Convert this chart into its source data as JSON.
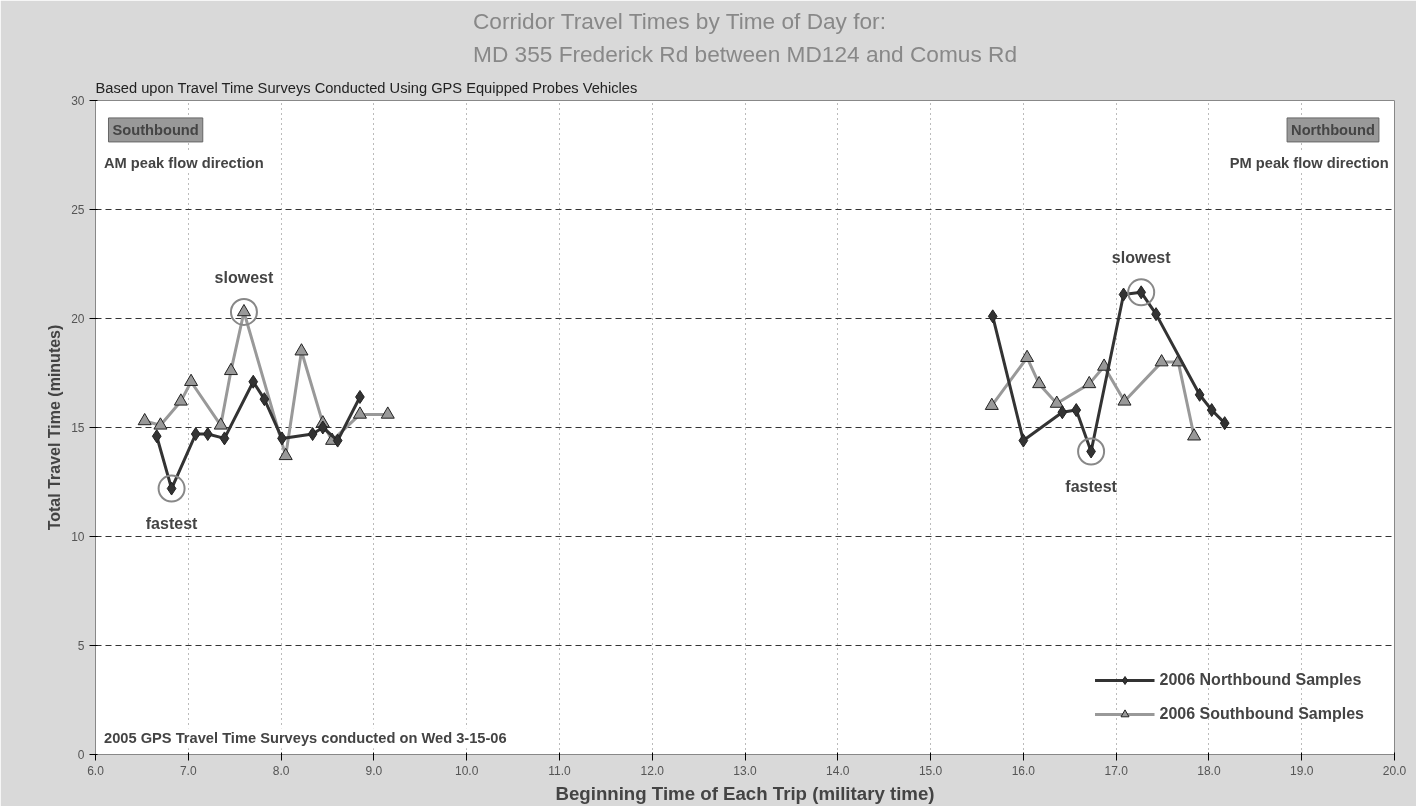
{
  "chart_data": {
    "type": "line",
    "title": "Corridor Travel Times by Time of Day for:\nMD 355 Frederick Rd between MD124 and Comus Rd",
    "subtitle": "Based upon Travel Time Surveys Conducted Using GPS Equipped Probes Vehicles",
    "xlabel": "Beginning Time of Each Trip (military time)",
    "ylabel": "Total Travel Time (minutes)",
    "series": [
      {
        "name": "2006 Northbound Samples",
        "color": "#333333",
        "marker": "diamond",
        "x": [
          6.66,
          6.82,
          7.08,
          7.21,
          7.39,
          7.7,
          7.82,
          8.01,
          8.34,
          8.45,
          8.61,
          8.85,
          12.0,
          15.67,
          16.0,
          16.42,
          16.57,
          16.73,
          17.08,
          17.27,
          17.43,
          17.9,
          18.03,
          18.17
        ],
        "values": [
          14.6,
          12.2,
          14.7,
          14.7,
          14.5,
          17.1,
          16.3,
          14.5,
          14.7,
          15.0,
          14.4,
          16.4,
          null,
          20.1,
          14.4,
          15.7,
          15.8,
          13.9,
          21.1,
          21.2,
          20.2,
          16.5,
          15.8,
          15.2
        ]
      },
      {
        "name": "2006 Southbound Samples",
        "color": "#999999",
        "marker": "triangle",
        "x": [
          6.53,
          6.7,
          6.92,
          7.03,
          7.35,
          7.46,
          7.6,
          8.05,
          8.22,
          8.45,
          8.55,
          8.85,
          9.15,
          12.0,
          15.66,
          16.04,
          16.17,
          16.36,
          16.71,
          16.87,
          17.09,
          17.49,
          17.67,
          17.84
        ],
        "values": [
          15.3,
          15.1,
          16.2,
          17.1,
          15.1,
          17.6,
          20.3,
          13.7,
          18.5,
          15.2,
          14.4,
          15.6,
          15.6,
          null,
          16.0,
          18.2,
          17.0,
          16.1,
          17.0,
          17.8,
          16.2,
          18.0,
          18.0,
          14.6
        ]
      }
    ],
    "annotations": [
      {
        "text": "slowest",
        "x": 7.6,
        "y": 20.3
      },
      {
        "text": "fastest",
        "x": 6.82,
        "y": 12.2
      },
      {
        "text": "slowest",
        "x": 17.27,
        "y": 21.2
      },
      {
        "text": "fastest",
        "x": 16.73,
        "y": 13.9
      },
      "Southbound",
      "AM peak flow direction",
      "Northbound",
      "PM peak flow direction",
      "2005 GPS Travel Time Surveys conducted on Wed 3-15-06"
    ],
    "xlim": [
      6.0,
      20.0
    ],
    "xticks": [
      {
        "value": 6,
        "label": "6.0"
      },
      {
        "value": 7,
        "label": "7.0"
      },
      {
        "value": 8,
        "label": "8.0"
      },
      {
        "value": 9,
        "label": "9.0"
      },
      {
        "value": 10,
        "label": "10.0"
      },
      {
        "value": 11,
        "label": "11.0"
      },
      {
        "value": 12,
        "label": "12.0"
      },
      {
        "value": 13,
        "label": "13.0"
      },
      {
        "value": 14,
        "label": "14.0"
      },
      {
        "value": 15,
        "label": "15.0"
      },
      {
        "value": 16,
        "label": "16.0"
      },
      {
        "value": 17,
        "label": "17.0"
      },
      {
        "value": 18,
        "label": "18.0"
      },
      {
        "value": 19,
        "label": "19.0"
      },
      {
        "value": 20,
        "label": "20.0"
      }
    ],
    "ylim": [
      0,
      30
    ],
    "yticks": [
      0,
      5,
      10,
      15,
      20,
      25,
      30
    ],
    "grid": true,
    "legend": "bottom right",
    "line_style": "solid"
  }
}
